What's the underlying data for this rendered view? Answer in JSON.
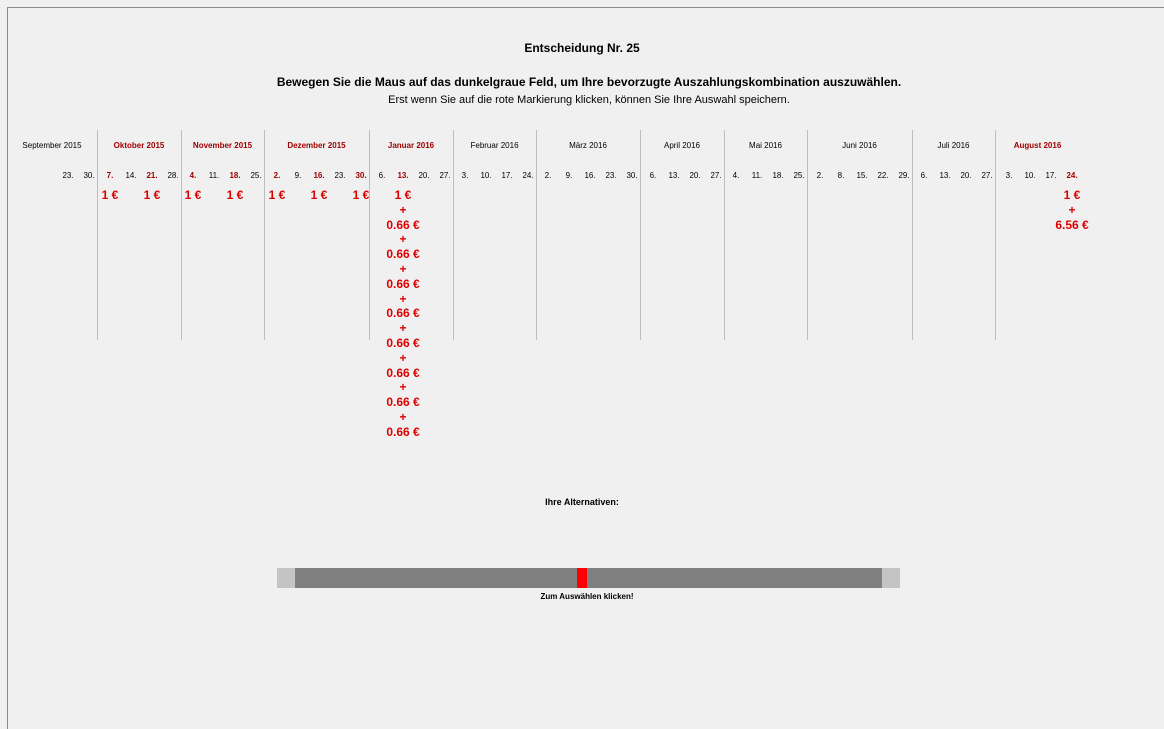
{
  "header": {
    "title": "Entscheidung Nr. 25",
    "instruction": "Bewegen Sie die Maus auf das dunkelgraue Feld, um Ihre bevorzugte Auszahlungskombination auszuwählen.",
    "note": "Erst wenn Sie auf die rote Markierung klicken, können Sie Ihre Auswahl speichern."
  },
  "calendar": {
    "months": [
      {
        "name": "September 2015",
        "highlight": false,
        "days": [
          {
            "label": "23.",
            "highlight": false
          },
          {
            "label": "30.",
            "highlight": false
          }
        ]
      },
      {
        "name": "Oktober 2015",
        "highlight": true,
        "days": [
          {
            "label": "7.",
            "highlight": true,
            "payment": [
              "1 €"
            ]
          },
          {
            "label": "14.",
            "highlight": false
          },
          {
            "label": "21.",
            "highlight": true,
            "payment": [
              "1 €"
            ]
          },
          {
            "label": "28.",
            "highlight": false
          }
        ]
      },
      {
        "name": "November 2015",
        "highlight": true,
        "days": [
          {
            "label": "4.",
            "highlight": true,
            "payment": [
              "1 €"
            ]
          },
          {
            "label": "11.",
            "highlight": false
          },
          {
            "label": "18.",
            "highlight": true,
            "payment": [
              "1 €"
            ]
          },
          {
            "label": "25.",
            "highlight": false
          }
        ]
      },
      {
        "name": "Dezember 2015",
        "highlight": true,
        "days": [
          {
            "label": "2.",
            "highlight": true,
            "payment": [
              "1 €"
            ]
          },
          {
            "label": "9.",
            "highlight": false
          },
          {
            "label": "16.",
            "highlight": true,
            "payment": [
              "1 €"
            ]
          },
          {
            "label": "23.",
            "highlight": false
          },
          {
            "label": "30.",
            "highlight": true,
            "payment": [
              "1 €"
            ]
          }
        ]
      },
      {
        "name": "Januar 2016",
        "highlight": true,
        "days": [
          {
            "label": "6.",
            "highlight": false
          },
          {
            "label": "13.",
            "highlight": true,
            "payment": [
              "1 €",
              "+",
              "0.66 €",
              "+",
              "0.66 €",
              "+",
              "0.66 €",
              "+",
              "0.66 €",
              "+",
              "0.66 €",
              "+",
              "0.66 €",
              "+",
              "0.66 €",
              "+",
              "0.66 €"
            ]
          },
          {
            "label": "20.",
            "highlight": false
          },
          {
            "label": "27.",
            "highlight": false
          }
        ]
      },
      {
        "name": "Februar 2016",
        "highlight": false,
        "days": [
          {
            "label": "3.",
            "highlight": false
          },
          {
            "label": "10.",
            "highlight": false
          },
          {
            "label": "17.",
            "highlight": false
          },
          {
            "label": "24.",
            "highlight": false
          }
        ]
      },
      {
        "name": "März 2016",
        "highlight": false,
        "days": [
          {
            "label": "2.",
            "highlight": false
          },
          {
            "label": "9.",
            "highlight": false
          },
          {
            "label": "16.",
            "highlight": false
          },
          {
            "label": "23.",
            "highlight": false
          },
          {
            "label": "30.",
            "highlight": false
          }
        ]
      },
      {
        "name": "April 2016",
        "highlight": false,
        "days": [
          {
            "label": "6.",
            "highlight": false
          },
          {
            "label": "13.",
            "highlight": false
          },
          {
            "label": "20.",
            "highlight": false
          },
          {
            "label": "27.",
            "highlight": false
          }
        ]
      },
      {
        "name": "Mai 2016",
        "highlight": false,
        "days": [
          {
            "label": "4.",
            "highlight": false
          },
          {
            "label": "11.",
            "highlight": false
          },
          {
            "label": "18.",
            "highlight": false
          },
          {
            "label": "25.",
            "highlight": false
          }
        ]
      },
      {
        "name": "Juni 2016",
        "highlight": false,
        "days": [
          {
            "label": "2.",
            "highlight": false
          },
          {
            "label": "8.",
            "highlight": false
          },
          {
            "label": "15.",
            "highlight": false
          },
          {
            "label": "22.",
            "highlight": false
          },
          {
            "label": "29.",
            "highlight": false
          }
        ]
      },
      {
        "name": "Juli 2016",
        "highlight": false,
        "days": [
          {
            "label": "6.",
            "highlight": false
          },
          {
            "label": "13.",
            "highlight": false
          },
          {
            "label": "20.",
            "highlight": false
          },
          {
            "label": "27.",
            "highlight": false
          }
        ]
      },
      {
        "name": "August 2016",
        "highlight": true,
        "days": [
          {
            "label": "3.",
            "highlight": false
          },
          {
            "label": "10.",
            "highlight": false
          },
          {
            "label": "17.",
            "highlight": false
          },
          {
            "label": "24.",
            "highlight": true,
            "payment": [
              "1 €",
              "+",
              "6.56 €"
            ]
          }
        ]
      }
    ]
  },
  "alternatives": {
    "title": "Ihre Alternativen:",
    "button": "Zum Auswählen klicken!"
  }
}
